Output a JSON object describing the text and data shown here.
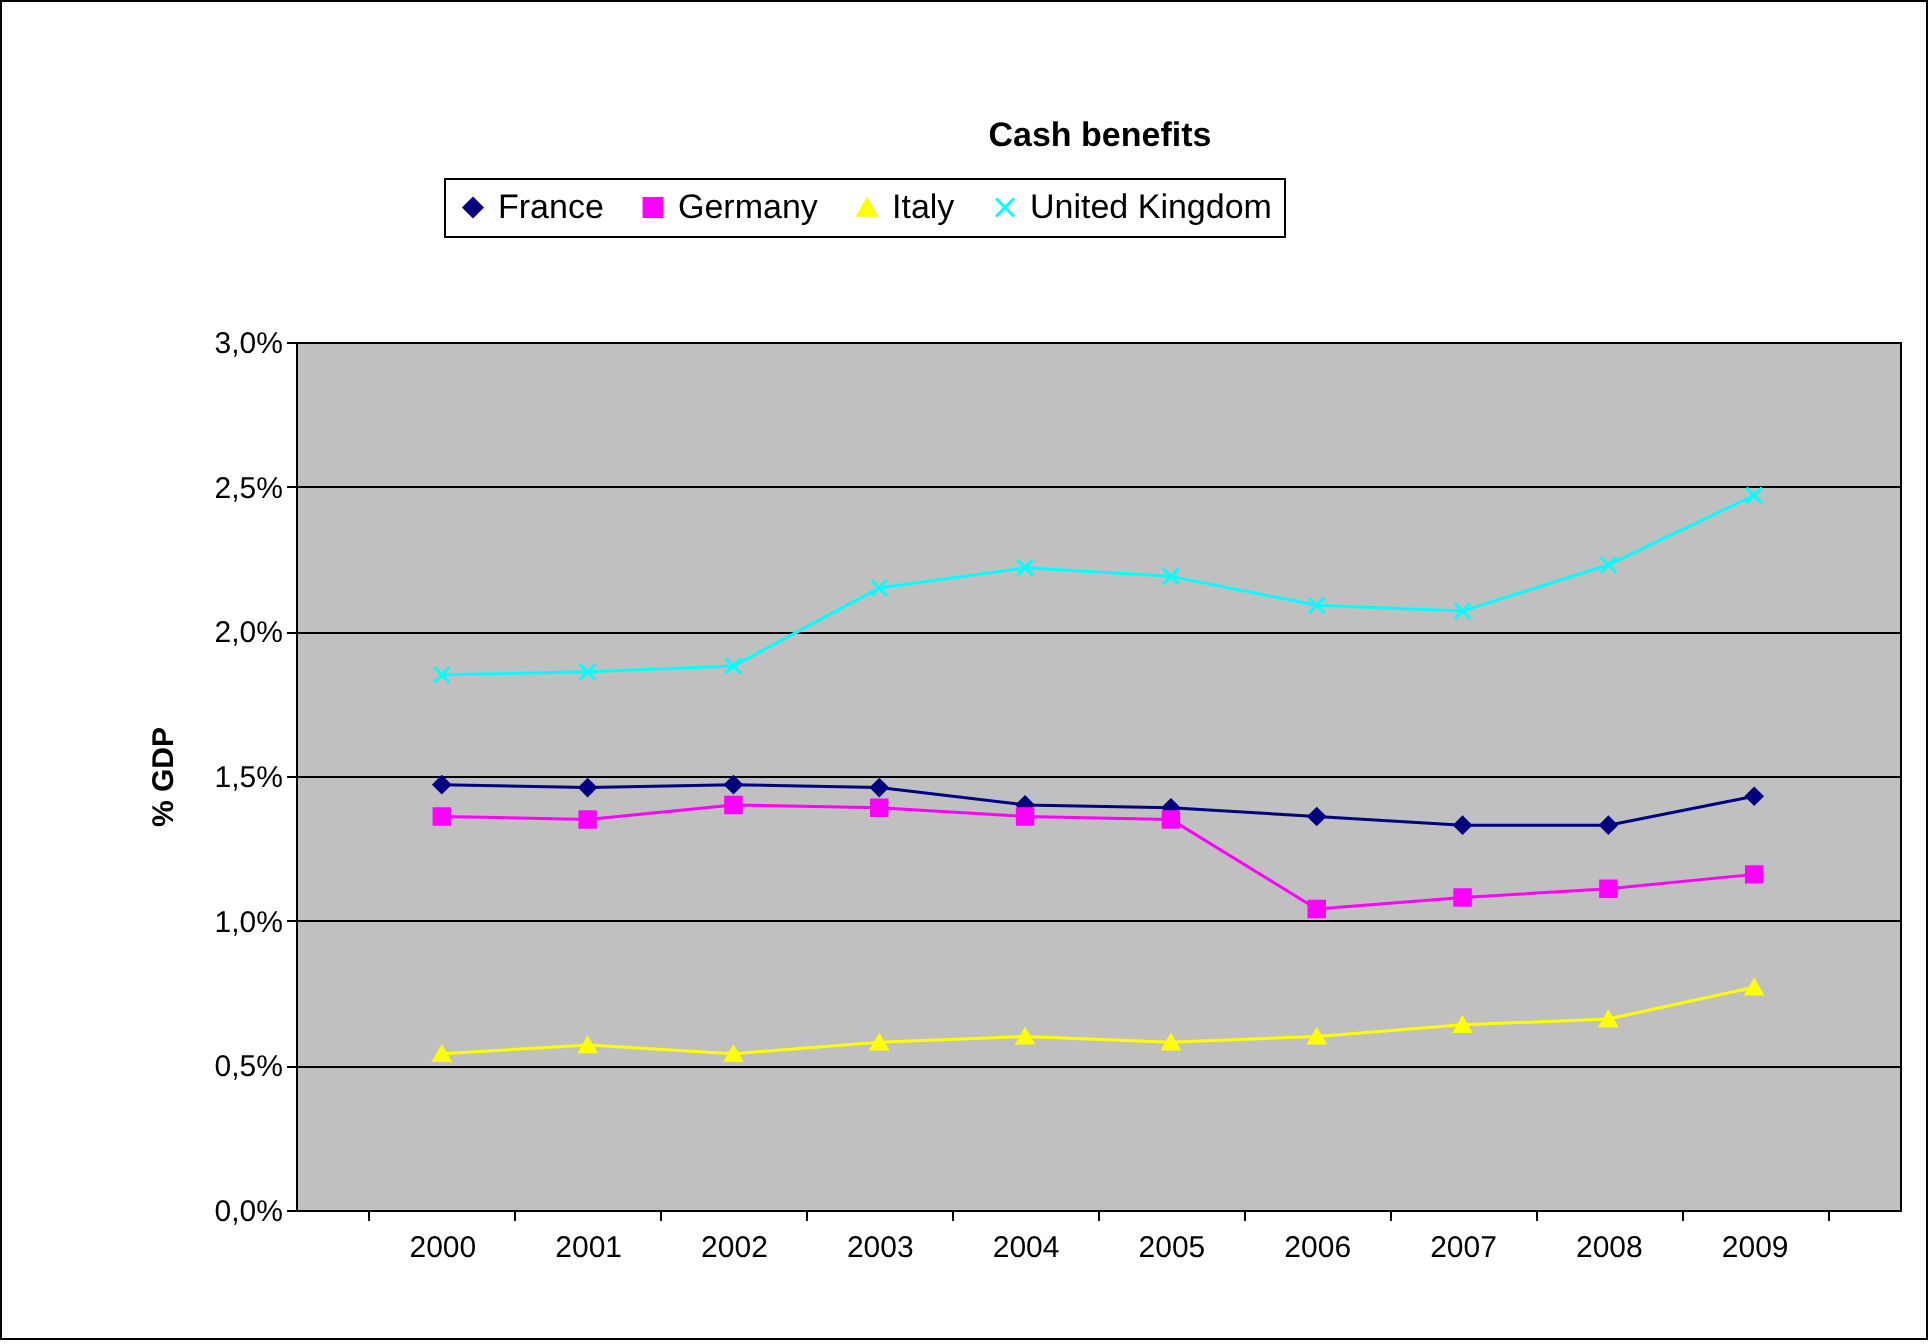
{
  "chart_data": {
    "type": "line",
    "title": "Cash benefits",
    "ylabel": "% GDP",
    "categories": [
      "2000",
      "2001",
      "2002",
      "2003",
      "2004",
      "2005",
      "2006",
      "2007",
      "2008",
      "2009"
    ],
    "series": [
      {
        "name": "France",
        "color": "#000080",
        "marker": "diamond",
        "values": [
          1.47,
          1.46,
          1.47,
          1.46,
          1.4,
          1.39,
          1.36,
          1.33,
          1.33,
          1.43
        ]
      },
      {
        "name": "Germany",
        "color": "#ff00ff",
        "marker": "square",
        "values": [
          1.36,
          1.35,
          1.4,
          1.39,
          1.36,
          1.35,
          1.04,
          1.08,
          1.11,
          1.16
        ]
      },
      {
        "name": "Italy",
        "color": "#ffff00",
        "marker": "triangle",
        "values": [
          0.54,
          0.57,
          0.54,
          0.58,
          0.6,
          0.58,
          0.6,
          0.64,
          0.66,
          0.77
        ]
      },
      {
        "name": "United Kingdom",
        "color": "#00ffff",
        "marker": "cross",
        "values": [
          1.85,
          1.86,
          1.88,
          2.15,
          2.22,
          2.19,
          2.09,
          2.07,
          2.23,
          2.47
        ]
      }
    ],
    "ylim": [
      0,
      3
    ],
    "yticks": [
      {
        "value": 0,
        "label": "0,0%"
      },
      {
        "value": 0.5,
        "label": "0,5%"
      },
      {
        "value": 1,
        "label": "1,0%"
      },
      {
        "value": 1.5,
        "label": "1,5%"
      },
      {
        "value": 2,
        "label": "2,0%"
      },
      {
        "value": 2.5,
        "label": "2,5%"
      },
      {
        "value": 3,
        "label": "3,0%"
      }
    ],
    "grid": "y",
    "legend": "top"
  }
}
